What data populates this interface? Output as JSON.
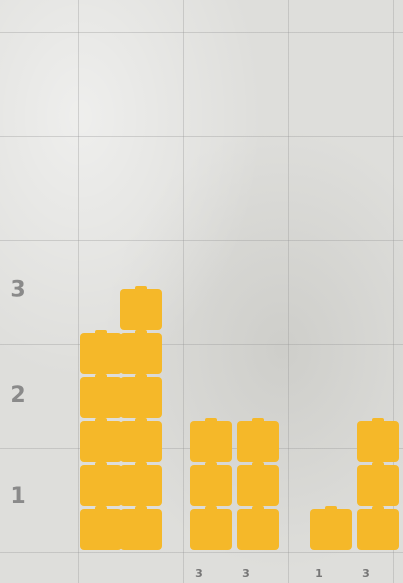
{
  "chart_data": {
    "type": "blocks",
    "values": [
      5,
      6,
      3,
      3,
      1,
      3
    ],
    "value_labels": [
      null,
      null,
      "3",
      "3",
      "1",
      "3"
    ],
    "color": "#f5b829",
    "ylim": [
      0,
      12.5
    ],
    "yticks": [
      {
        "value": 1.2,
        "label": "1"
      },
      {
        "value": 3.5,
        "label": "2"
      },
      {
        "value": 5.9,
        "label": "3"
      }
    ]
  }
}
